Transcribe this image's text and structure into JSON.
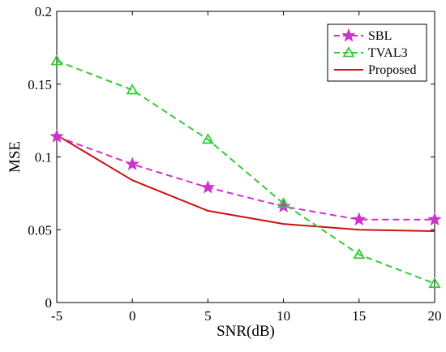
{
  "chart_data": {
    "type": "line",
    "xlabel": "SNR(dB)",
    "ylabel": "MSE",
    "x": [
      -5,
      0,
      5,
      10,
      15,
      20
    ],
    "xlim": [
      -5,
      20
    ],
    "ylim": [
      0,
      0.2
    ],
    "xticks": [
      "-5",
      "0",
      "5",
      "10",
      "15",
      "20"
    ],
    "yticks": [
      "0",
      "0.05",
      "0.1",
      "0.15",
      "0.2"
    ],
    "grid": false,
    "legend_position": "top-right",
    "series": [
      {
        "name": "SBL",
        "values": [
          0.114,
          0.095,
          0.079,
          0.066,
          0.057,
          0.057
        ],
        "color": "#cc33cc",
        "marker": "star",
        "line": "dashed"
      },
      {
        "name": "TVAL3",
        "values": [
          0.166,
          0.146,
          0.112,
          0.068,
          0.033,
          0.013
        ],
        "color": "#33cc33",
        "marker": "triangle",
        "line": "dashed"
      },
      {
        "name": "Proposed",
        "values": [
          0.115,
          0.084,
          0.063,
          0.054,
          0.05,
          0.049
        ],
        "color": "#cc1111",
        "marker": "none",
        "line": "solid"
      }
    ]
  }
}
